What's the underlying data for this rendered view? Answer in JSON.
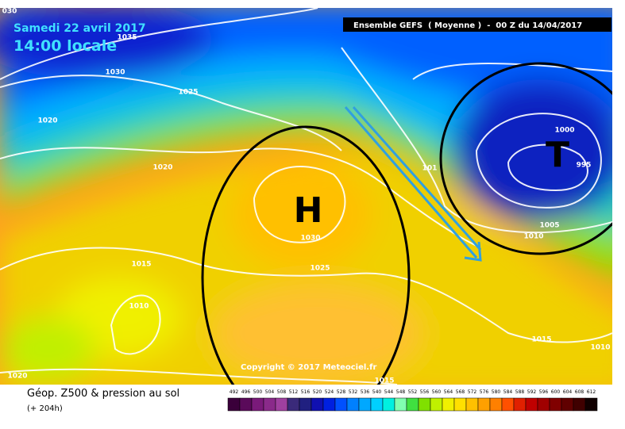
{
  "header": {
    "date": "Samedi 22 avril 2017",
    "time": "14:00 locale",
    "model": "Ensemble GEFS  ( Moyenne )  -  00 Z du 14/04/2017"
  },
  "isobar_labels": [
    "030",
    1035,
    1030,
    1025,
    1020,
    1020,
    1015,
    1010,
    1020,
    1030,
    1025,
    "101",
    1000,
    995,
    1005,
    1010,
    1015,
    1010,
    1015
  ],
  "pressure_centers": [
    "H",
    "T"
  ],
  "copyright": "Copyright © 2017 Meteociel.fr",
  "legend": {
    "title": "Géop. Z500 & pression au sol",
    "lead": "(+ 204h)",
    "scale": [
      492,
      496,
      500,
      504,
      508,
      512,
      516,
      520,
      524,
      528,
      532,
      536,
      540,
      544,
      548,
      552,
      556,
      560,
      564,
      568,
      572,
      576,
      580,
      584,
      588,
      592,
      596,
      600,
      604,
      608,
      612
    ],
    "colors": [
      "#3a003a",
      "#5a0a5a",
      "#7a1a7a",
      "#8a2a8a",
      "#a040a0",
      "#3a2a7a",
      "#202080",
      "#1010b0",
      "#0020e0",
      "#0050ff",
      "#0080ff",
      "#00a8ff",
      "#00d0ff",
      "#00f0e0",
      "#80ffb0",
      "#40e040",
      "#80e000",
      "#c0f000",
      "#f0f000",
      "#ffe000",
      "#ffc000",
      "#ffa000",
      "#ff8000",
      "#ff5000",
      "#e02000",
      "#c00000",
      "#a00000",
      "#800000",
      "#600000",
      "#400000",
      "#100000"
    ]
  }
}
